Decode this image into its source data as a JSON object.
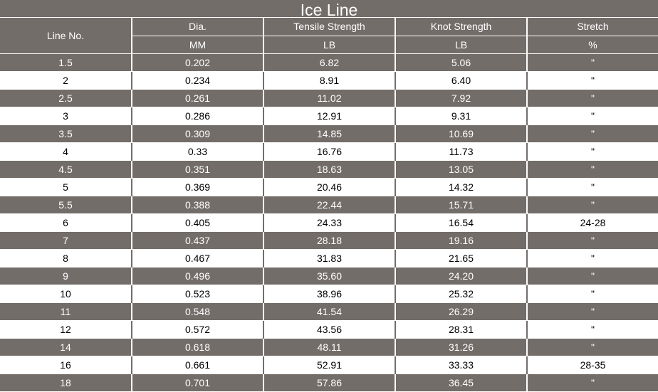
{
  "title": "Ice Line",
  "headers": {
    "line_no": "Line No.",
    "dia": "Dia.",
    "tensile": "Tensile Strength",
    "knot": "Knot Strength",
    "stretch": "Stretch"
  },
  "units": {
    "dia": "MM",
    "tensile": "LB",
    "knot": "LB",
    "stretch": "%"
  },
  "rows": [
    {
      "line": "1.5",
      "dia": "0.202",
      "tensile": "6.82",
      "knot": "5.06",
      "stretch": "\""
    },
    {
      "line": "2",
      "dia": "0.234",
      "tensile": "8.91",
      "knot": "6.40",
      "stretch": "\""
    },
    {
      "line": "2.5",
      "dia": "0.261",
      "tensile": "11.02",
      "knot": "7.92",
      "stretch": "\""
    },
    {
      "line": "3",
      "dia": "0.286",
      "tensile": "12.91",
      "knot": "9.31",
      "stretch": "\""
    },
    {
      "line": "3.5",
      "dia": "0.309",
      "tensile": "14.85",
      "knot": "10.69",
      "stretch": "\""
    },
    {
      "line": "4",
      "dia": "0.33",
      "tensile": "16.76",
      "knot": "11.73",
      "stretch": "\""
    },
    {
      "line": "4.5",
      "dia": "0.351",
      "tensile": "18.63",
      "knot": "13.05",
      "stretch": "\""
    },
    {
      "line": "5",
      "dia": "0.369",
      "tensile": "20.46",
      "knot": "14.32",
      "stretch": "\""
    },
    {
      "line": "5.5",
      "dia": "0.388",
      "tensile": "22.44",
      "knot": "15.71",
      "stretch": "\""
    },
    {
      "line": "6",
      "dia": "0.405",
      "tensile": "24.33",
      "knot": "16.54",
      "stretch": "24-28"
    },
    {
      "line": "7",
      "dia": "0.437",
      "tensile": "28.18",
      "knot": "19.16",
      "stretch": "\""
    },
    {
      "line": "8",
      "dia": "0.467",
      "tensile": "31.83",
      "knot": "21.65",
      "stretch": "\""
    },
    {
      "line": "9",
      "dia": "0.496",
      "tensile": "35.60",
      "knot": "24.20",
      "stretch": "\""
    },
    {
      "line": "10",
      "dia": "0.523",
      "tensile": "38.96",
      "knot": "25.32",
      "stretch": "\""
    },
    {
      "line": "11",
      "dia": "0.548",
      "tensile": "41.54",
      "knot": "26.29",
      "stretch": "\""
    },
    {
      "line": "12",
      "dia": "0.572",
      "tensile": "43.56",
      "knot": "28.31",
      "stretch": "\""
    },
    {
      "line": "14",
      "dia": "0.618",
      "tensile": "48.11",
      "knot": "31.26",
      "stretch": "\""
    },
    {
      "line": "16",
      "dia": "0.661",
      "tensile": "52.91",
      "knot": "33.33",
      "stretch": "28-35"
    },
    {
      "line": "18",
      "dia": "0.701",
      "tensile": "57.86",
      "knot": "36.45",
      "stretch": "\""
    }
  ],
  "colors": {
    "band": "#736d6a",
    "light": "#ffffff",
    "text_dark": "#000000",
    "text_light": "#ffffff"
  }
}
